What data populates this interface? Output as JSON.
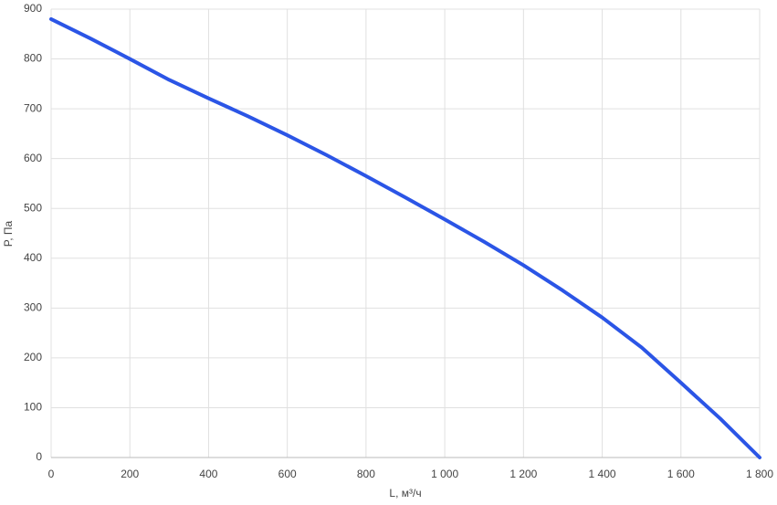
{
  "chart_data": {
    "type": "line",
    "x_label": "L, м³/ч",
    "y_label": "P, Па",
    "x": [
      0,
      100,
      200,
      300,
      400,
      500,
      600,
      700,
      800,
      900,
      1000,
      1100,
      1200,
      1300,
      1400,
      1500,
      1600,
      1700,
      1800
    ],
    "series": [
      {
        "color": "#2b55e6",
        "values": [
          880,
          841,
          800,
          758,
          721,
          685,
          647,
          607,
          565,
          522,
          478,
          433,
          386,
          335,
          281,
          221,
          150,
          78,
          0
        ]
      }
    ],
    "xlim": [
      0,
      1800
    ],
    "ylim": [
      0,
      900
    ],
    "xticks": [
      0,
      200,
      400,
      600,
      800,
      {
        "value": 1000,
        "label": "1 000"
      },
      {
        "value": 1200,
        "label": "1 200"
      },
      {
        "value": 1400,
        "label": "1 400"
      },
      {
        "value": 1600,
        "label": "1 600"
      },
      {
        "value": 1800,
        "label": "1 800"
      }
    ],
    "yticks": [
      0,
      100,
      200,
      300,
      400,
      500,
      600,
      700,
      800,
      900
    ],
    "grid": true
  }
}
